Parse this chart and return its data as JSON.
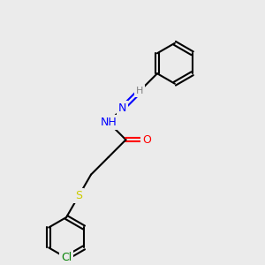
{
  "background_color": "#ebebeb",
  "bond_color": "#000000",
  "bond_lw": 1.5,
  "atom_colors": {
    "N": "#0000ff",
    "O": "#ff0000",
    "S": "#cccc00",
    "Cl": "#008000",
    "H_label": "#808080",
    "C": "#000000"
  },
  "font_size": 9,
  "font_size_small": 8
}
